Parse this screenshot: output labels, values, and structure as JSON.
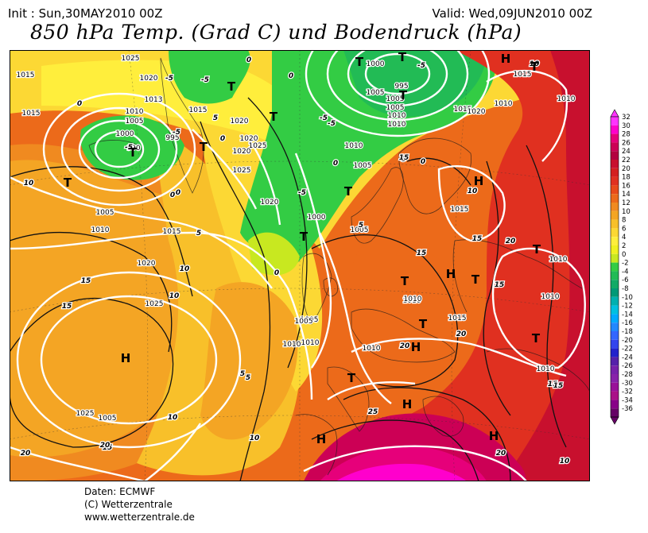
{
  "header": {
    "init": "Init : Sun,30MAY2010 00Z",
    "valid": "Valid: Wed,09JUN2010 00Z",
    "title": "850 hPa Temp. (Grad C) und Bodendruck (hPa)"
  },
  "footer": {
    "source": "Daten: ECMWF",
    "copyright": "(C) Wetterzentrale",
    "website": "www.wetterzentrale.de"
  },
  "legend": {
    "labels": [
      "32",
      "30",
      "28",
      "26",
      "24",
      "22",
      "20",
      "18",
      "16",
      "14",
      "12",
      "10",
      "8",
      "6",
      "4",
      "2",
      "0",
      "-2",
      "-4",
      "-6",
      "-8",
      "-10",
      "-12",
      "-14",
      "-16",
      "-18",
      "-20",
      "-22",
      "-24",
      "-26",
      "-28",
      "-30",
      "-32",
      "-34",
      "-36"
    ],
    "colors": [
      "#ff33ff",
      "#ff00cc",
      "#e6007a",
      "#cc0055",
      "#b30040",
      "#c8102e",
      "#d42020",
      "#e03020",
      "#e84a1a",
      "#ec6a1a",
      "#f08a20",
      "#f4a524",
      "#f8c02a",
      "#fcd834",
      "#ffee3c",
      "#f0f020",
      "#c8e820",
      "#33cc44",
      "#22bb55",
      "#11aa66",
      "#009977",
      "#00b0b0",
      "#00c0e0",
      "#00aaff",
      "#2288ff",
      "#3366ff",
      "#3344ee",
      "#2222cc",
      "#5522aa",
      "#7722aa",
      "#8822aa",
      "#991199",
      "#aa1188",
      "#880088",
      "#660066"
    ]
  },
  "map": {
    "pressure_labels": [
      {
        "text": "1025"
      },
      {
        "text": "1015"
      },
      {
        "text": "1020"
      },
      {
        "text": "1013"
      },
      {
        "text": "1010"
      },
      {
        "text": "1005"
      },
      {
        "text": "1000"
      },
      {
        "text": "995"
      },
      {
        "text": "990"
      },
      {
        "text": "1015"
      },
      {
        "text": "1005"
      },
      {
        "text": "1010"
      },
      {
        "text": "1015"
      },
      {
        "text": "1020"
      },
      {
        "text": "1025"
      },
      {
        "text": "1015"
      },
      {
        "text": "1020"
      },
      {
        "text": "1020"
      },
      {
        "text": "1025"
      },
      {
        "text": "1020"
      },
      {
        "text": "1025"
      },
      {
        "text": "1020"
      },
      {
        "text": "1000"
      },
      {
        "text": "1005"
      },
      {
        "text": "1005"
      },
      {
        "text": "1010"
      },
      {
        "text": "1005"
      },
      {
        "text": "1010"
      },
      {
        "text": "1015"
      },
      {
        "text": "995"
      },
      {
        "text": "1005"
      },
      {
        "text": "1010"
      },
      {
        "text": "1015"
      },
      {
        "text": "1000"
      },
      {
        "text": "1005"
      },
      {
        "text": "1020"
      },
      {
        "text": "1010"
      },
      {
        "text": "1015"
      },
      {
        "text": "1010"
      },
      {
        "text": "1010"
      },
      {
        "text": "1010"
      },
      {
        "text": "1025"
      },
      {
        "text": "1010"
      },
      {
        "text": "1010"
      },
      {
        "text": "1015"
      },
      {
        "text": "1010"
      },
      {
        "text": "1010"
      },
      {
        "text": "1010"
      },
      {
        "text": "1005"
      },
      {
        "text": "1010"
      },
      {
        "text": "1005"
      },
      {
        "text": "1005"
      }
    ],
    "temp_labels": [
      {
        "text": "0"
      },
      {
        "text": "-5"
      },
      {
        "text": "-5"
      },
      {
        "text": "0"
      },
      {
        "text": "-5"
      },
      {
        "text": "10"
      },
      {
        "text": "0"
      },
      {
        "text": "5"
      },
      {
        "text": "0"
      },
      {
        "text": "-5"
      },
      {
        "text": "-5"
      },
      {
        "text": "0"
      },
      {
        "text": "-5"
      },
      {
        "text": "5"
      },
      {
        "text": "0"
      },
      {
        "text": "0"
      },
      {
        "text": "-5"
      },
      {
        "text": "0"
      },
      {
        "text": "10"
      },
      {
        "text": "5"
      },
      {
        "text": "10"
      },
      {
        "text": "15"
      },
      {
        "text": "10"
      },
      {
        "text": "15"
      },
      {
        "text": "10"
      },
      {
        "text": "5"
      },
      {
        "text": "5"
      },
      {
        "text": "15"
      },
      {
        "text": "15"
      },
      {
        "text": "20"
      },
      {
        "text": "15"
      },
      {
        "text": "10"
      },
      {
        "text": "25"
      },
      {
        "text": "20"
      },
      {
        "text": "20"
      },
      {
        "text": "15"
      },
      {
        "text": "20"
      },
      {
        "text": "15"
      },
      {
        "text": "10"
      },
      {
        "text": "10"
      },
      {
        "text": "15"
      },
      {
        "text": "20"
      },
      {
        "text": "10"
      },
      {
        "text": "20"
      },
      {
        "text": "5"
      },
      {
        "text": "15"
      },
      {
        "text": "-5"
      },
      {
        "text": "0"
      }
    ],
    "pressure_centers": [
      {
        "text": "T"
      },
      {
        "text": "T"
      },
      {
        "text": "T"
      },
      {
        "text": "T"
      },
      {
        "text": "T"
      },
      {
        "text": "T"
      },
      {
        "text": "T"
      },
      {
        "text": "T"
      },
      {
        "text": "T"
      },
      {
        "text": "T"
      },
      {
        "text": "T"
      },
      {
        "text": "T"
      },
      {
        "text": "T"
      },
      {
        "text": "T"
      },
      {
        "text": "H"
      },
      {
        "text": "H"
      },
      {
        "text": "H"
      },
      {
        "text": "H"
      },
      {
        "text": "H"
      },
      {
        "text": "H"
      },
      {
        "text": "H"
      },
      {
        "text": "H"
      },
      {
        "text": "T"
      },
      {
        "text": "T"
      },
      {
        "text": "T"
      }
    ]
  }
}
